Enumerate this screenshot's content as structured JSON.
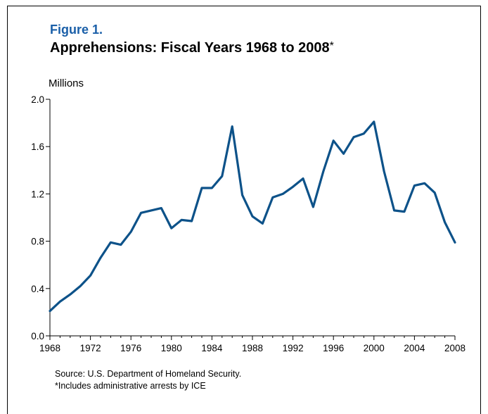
{
  "figure": {
    "number": "Figure 1.",
    "title": "Apprehensions: Fiscal Years 1968 to 2008",
    "title_marker": "*",
    "units": "Millions",
    "source": "Source: U.S. Department of Homeland Security.",
    "note": "*Includes administrative arrests by ICE"
  },
  "colors": {
    "line": "#0d5289",
    "title_accent": "#1a5fa8"
  },
  "chart_data": {
    "type": "line",
    "title": "Apprehensions: Fiscal Years 1968 to 2008*",
    "xlabel": "",
    "ylabel": "Millions",
    "xlim": [
      1968,
      2008
    ],
    "ylim": [
      0.0,
      2.0
    ],
    "x_ticks": [
      "1968",
      "1972",
      "1976",
      "1980",
      "1984",
      "1988",
      "1992",
      "1996",
      "2000",
      "2004",
      "2008"
    ],
    "y_ticks": [
      "0.0",
      "0.4",
      "0.8",
      "1.2",
      "1.6",
      "2.0"
    ],
    "grid": false,
    "series": [
      {
        "x": [
          1968,
          1969,
          1970,
          1971,
          1972,
          1973,
          1974,
          1975,
          1976,
          1977,
          1978,
          1979,
          1980,
          1981,
          1982,
          1983,
          1984,
          1985,
          1986,
          1987,
          1988,
          1989,
          1990,
          1991,
          1992,
          1993,
          1994,
          1995,
          1996,
          1997,
          1998,
          1999,
          2000,
          2001,
          2002,
          2003,
          2004,
          2005,
          2006,
          2007,
          2008
        ],
        "values": [
          0.21,
          0.29,
          0.35,
          0.42,
          0.51,
          0.66,
          0.79,
          0.77,
          0.88,
          1.04,
          1.06,
          1.08,
          0.91,
          0.98,
          0.97,
          1.25,
          1.25,
          1.35,
          1.77,
          1.19,
          1.01,
          0.95,
          1.17,
          1.2,
          1.26,
          1.33,
          1.09,
          1.39,
          1.65,
          1.54,
          1.68,
          1.71,
          1.81,
          1.39,
          1.06,
          1.05,
          1.27,
          1.29,
          1.21,
          0.96,
          0.79
        ]
      }
    ]
  }
}
